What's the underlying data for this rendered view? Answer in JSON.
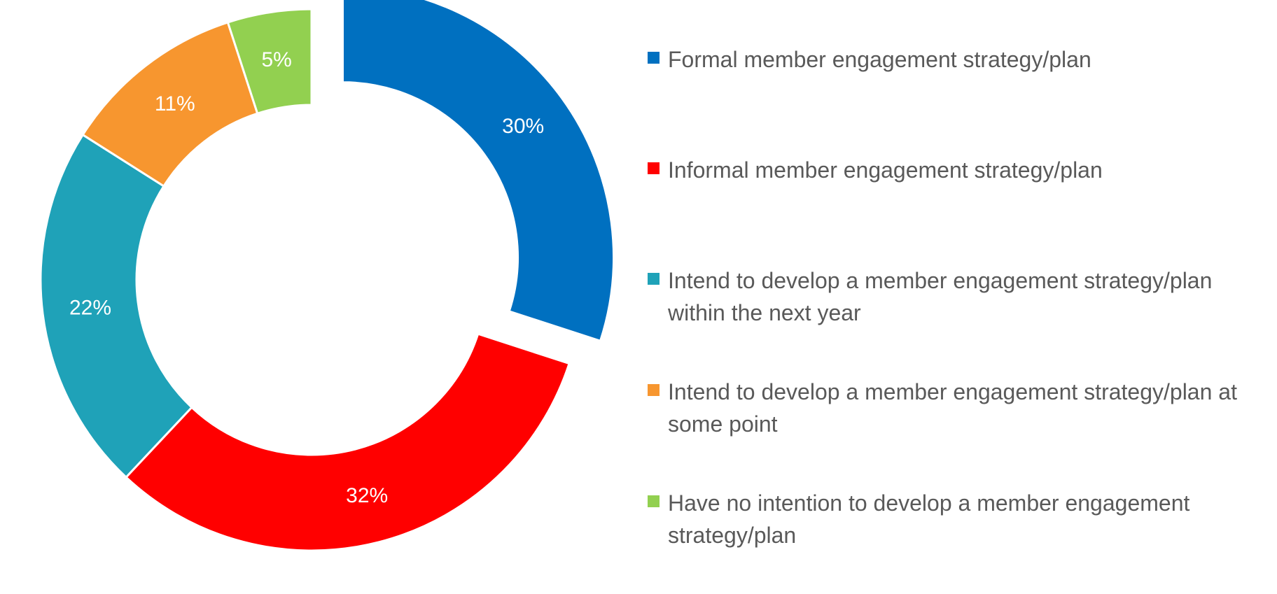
{
  "chart_data": {
    "type": "pie",
    "variant": "donut",
    "exploded_slice": "Formal member engagement strategy/plan",
    "legend_position": "right",
    "categories": [
      "Formal member engagement strategy/plan",
      "Informal member engagement strategy/plan",
      "Intend to develop a member engagement strategy/plan within the next year",
      "Intend to develop a member engagement strategy/plan at some point",
      "Have no intention to develop a member engagement strategy/plan"
    ],
    "values": [
      30,
      32,
      22,
      11,
      5
    ],
    "labels": [
      "30%",
      "32%",
      "22%",
      "11%",
      "5%"
    ],
    "colors": [
      "#0070C0",
      "#FF0000",
      "#1FA2B8",
      "#F7962F",
      "#92D050"
    ]
  }
}
